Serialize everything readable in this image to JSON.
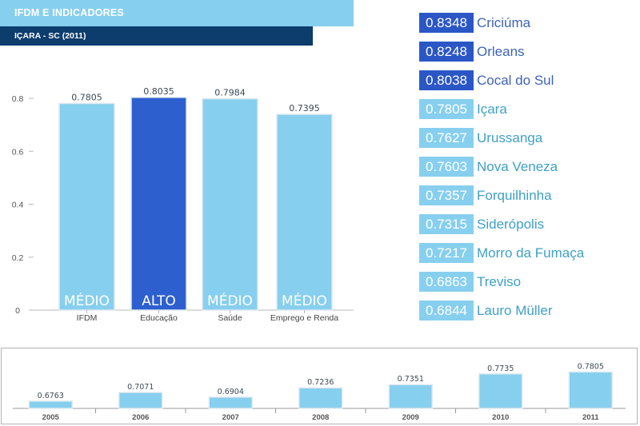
{
  "header": {
    "title": "IFDM E INDICADORES",
    "subtitle": "IÇARA - SC (2011)"
  },
  "colors": {
    "light_blue": "#87cfee",
    "dark_blue": "#2e5fcf",
    "navy": "#0c3d6d",
    "rank_light": "#87cfee",
    "rank_dark": "#2a56c6",
    "rank_text_light": "#3ea0c6",
    "rank_text_dark": "#3d63b8"
  },
  "ranking": [
    {
      "value": "0.8348",
      "city": "Criciúma",
      "highlight": true
    },
    {
      "value": "0.8248",
      "city": "Orleans",
      "highlight": true
    },
    {
      "value": "0.8038",
      "city": "Cocal do Sul",
      "highlight": true
    },
    {
      "value": "0.7805",
      "city": "Içara",
      "highlight": false
    },
    {
      "value": "0.7627",
      "city": "Urussanga",
      "highlight": false
    },
    {
      "value": "0.7603",
      "city": "Nova Veneza",
      "highlight": false
    },
    {
      "value": "0.7357",
      "city": "Forquilhinha",
      "highlight": false
    },
    {
      "value": "0.7315",
      "city": "Siderópolis",
      "highlight": false
    },
    {
      "value": "0.7217",
      "city": "Morro da Fumaça",
      "highlight": false
    },
    {
      "value": "0.6863",
      "city": "Treviso",
      "highlight": false
    },
    {
      "value": "0.6844",
      "city": "Lauro Müller",
      "highlight": false
    }
  ],
  "chart_data": [
    {
      "type": "bar",
      "title": "IÇARA - SC (2011)",
      "categories": [
        "IFDM",
        "Educação",
        "Saúde",
        "Emprego e Renda"
      ],
      "values": [
        0.7805,
        0.8035,
        0.7984,
        0.7395
      ],
      "data_labels": [
        "0.7805",
        "0.8035",
        "0.7984",
        "0.7395"
      ],
      "bar_labels": [
        "MÉDIO",
        "ALTO",
        "MÉDIO",
        "MÉDIO"
      ],
      "highlight": [
        false,
        true,
        false,
        false
      ],
      "ylim": [
        0,
        0.8
      ],
      "yticks": [
        0,
        0.2,
        0.4,
        0.6,
        0.8
      ],
      "ytick_labels": [
        "0",
        "0.2",
        "0.4",
        "0.6",
        "0.8"
      ],
      "xlabel": "",
      "ylabel": "",
      "grid": false
    },
    {
      "type": "bar",
      "title": "",
      "categories": [
        "2005",
        "2006",
        "2007",
        "2008",
        "2009",
        "2010",
        "2011"
      ],
      "values": [
        0.6763,
        0.7071,
        0.6904,
        0.7236,
        0.7351,
        0.7735,
        0.7805
      ],
      "data_labels": [
        "0.6763",
        "0.7071",
        "0.6904",
        "0.7236",
        "0.7351",
        "0.7735",
        "0.7805"
      ],
      "ylim": [
        0.65,
        0.79
      ],
      "xlabel": "",
      "ylabel": "",
      "grid": false
    }
  ]
}
